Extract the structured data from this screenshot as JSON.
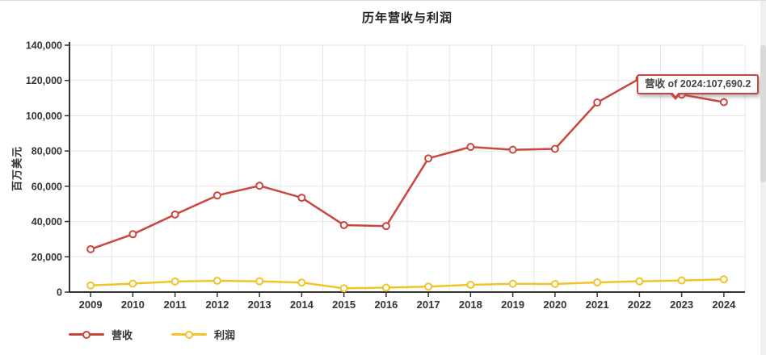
{
  "colors": {
    "revenue": "#c9473f",
    "profit": "#f0c428",
    "grid": "#e5e5e5",
    "axis": "#333333",
    "label": "#333333",
    "tooltip_border": "#c9473f"
  },
  "tooltip": {
    "text": "营收 of 2024:107,690.2"
  },
  "chart_data": {
    "type": "line",
    "title": "历年营收与利润",
    "ylabel": "百万美元",
    "xlabel": "",
    "ylim": [
      0,
      140000
    ],
    "ytick_step": 20000,
    "y_tick_labels": [
      "0",
      "20,000",
      "40,000",
      "60,000",
      "80,000",
      "100,000",
      "120,000",
      "140,000"
    ],
    "categories": [
      "2009",
      "2010",
      "2011",
      "2012",
      "2013",
      "2014",
      "2015",
      "2016",
      "2017",
      "2018",
      "2019",
      "2020",
      "2021",
      "2022",
      "2023",
      "2024"
    ],
    "series": [
      {
        "name": "营收",
        "color": "#c9473f",
        "values": [
          24300,
          32800,
          44000,
          54800,
          60300,
          53500,
          38000,
          37400,
          75800,
          82300,
          80700,
          81200,
          107500,
          121000,
          112000,
          107690.2
        ]
      },
      {
        "name": "利润",
        "color": "#f0c428",
        "values": [
          3800,
          4800,
          6000,
          6400,
          6100,
          5400,
          2100,
          2500,
          3100,
          4100,
          4700,
          4600,
          5500,
          6100,
          6600,
          7200
        ]
      }
    ],
    "grid": true,
    "legend_position": "bottom-left",
    "tooltip_annotation": {
      "series": "营收",
      "category": "2024",
      "value": 107690.2
    }
  }
}
